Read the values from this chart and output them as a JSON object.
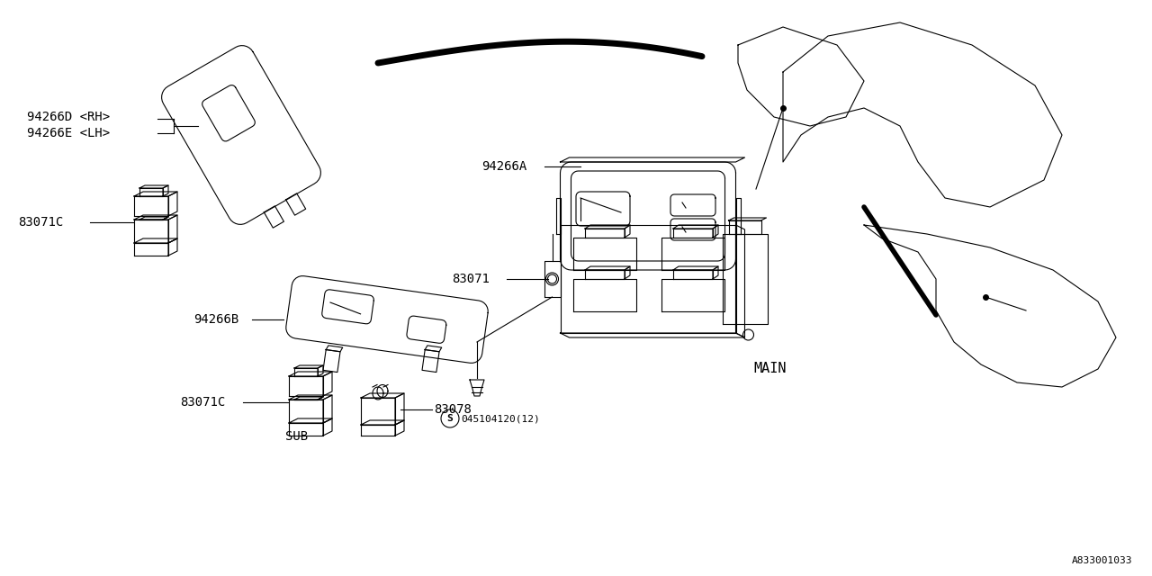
{
  "background_color": "#ffffff",
  "line_color": "#000000",
  "part_number_ref": "A833001033",
  "labels": {
    "94266D_RH": "94266D <RH>",
    "94266E_LH": "94266E <LH>",
    "83071C_top": "83071C",
    "94266A": "94266A",
    "94266B": "94266B",
    "83071": "83071",
    "83071C_bot": "83071C",
    "83078": "83078",
    "screw": "045104120(12)",
    "sub": "SUB",
    "main": "MAIN"
  },
  "font_size": 10
}
